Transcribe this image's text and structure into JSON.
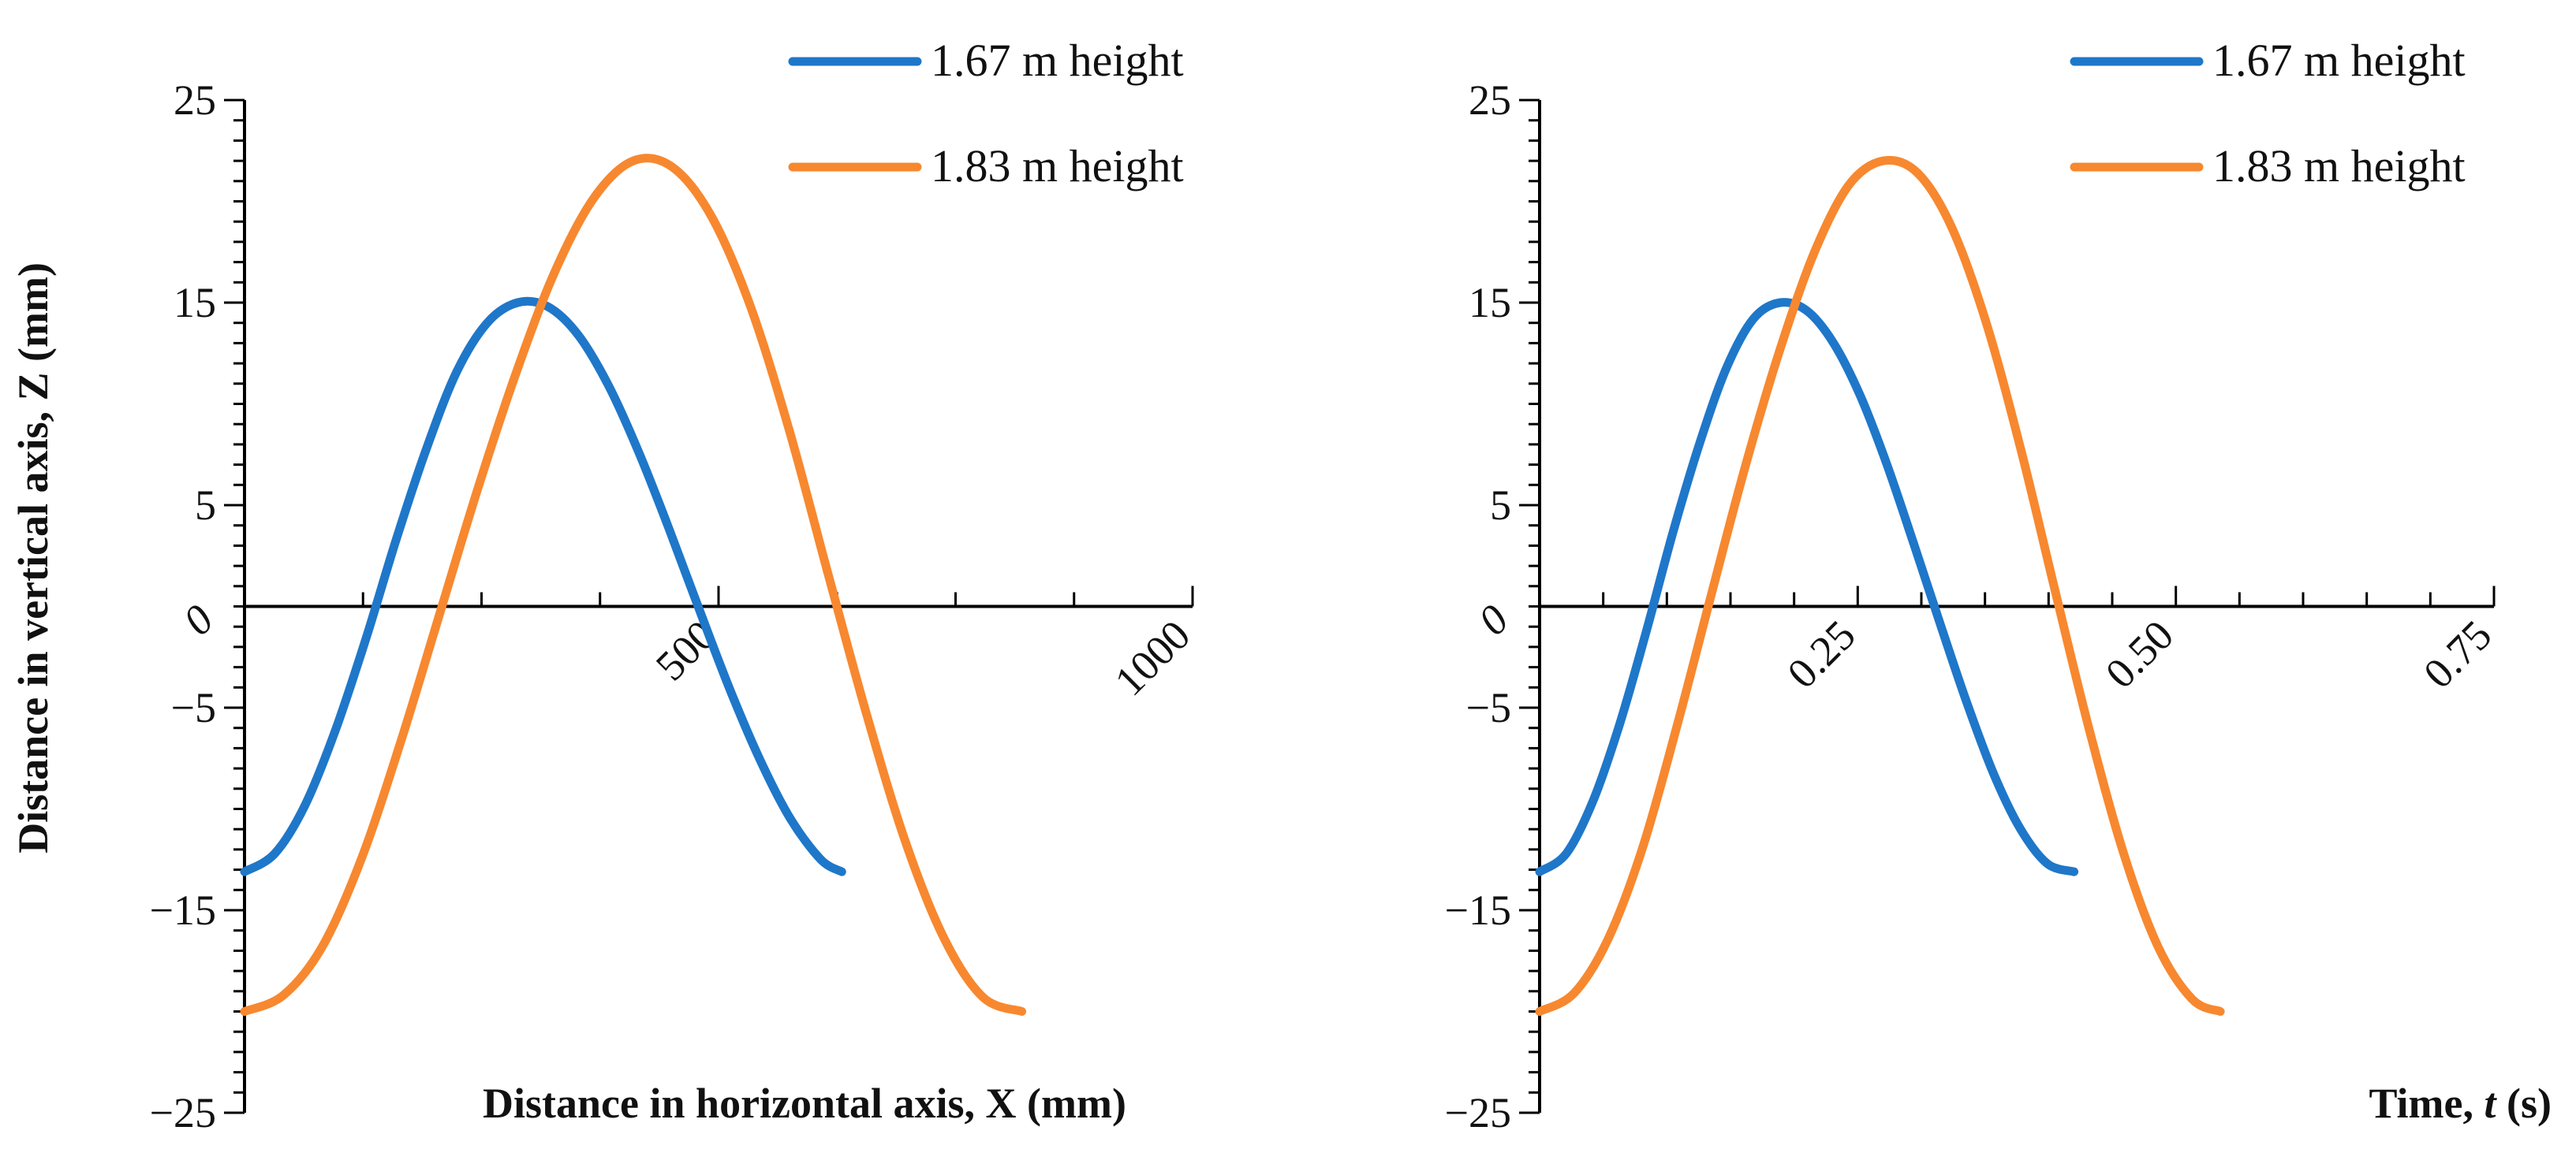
{
  "chart_data": [
    {
      "type": "line",
      "title": "",
      "xlabel": "Distance in horizontal axis, X (mm)",
      "ylabel": "Distance in vertical axis, Z (mm)",
      "xlim": [
        0,
        1000
      ],
      "ylim": [
        -25,
        25
      ],
      "y_major_ticks": [
        25,
        15,
        5,
        -5,
        -15,
        -25
      ],
      "y_minor_step": 1,
      "x_ticks": [
        500,
        1000
      ],
      "x_minor_step": 125,
      "zero_label": "0",
      "legend": [
        "1.67 m height",
        "1.83 m height"
      ],
      "series": [
        {
          "name": "1.67 m height",
          "color": "#1f77c9",
          "x": [
            0,
            32,
            64,
            96,
            128,
            160,
            192,
            224,
            256,
            288,
            320,
            352,
            384,
            416,
            448,
            480,
            512,
            544,
            576,
            608,
            630
          ],
          "y": [
            -13.1,
            -12.2,
            -9.8,
            -6.1,
            -1.6,
            3.3,
            7.8,
            11.6,
            14.0,
            15.0,
            14.8,
            13.4,
            10.9,
            7.6,
            3.8,
            -0.2,
            -4.1,
            -7.6,
            -10.5,
            -12.5,
            -13.1
          ]
        },
        {
          "name": "1.83 m height",
          "color": "#f7882f",
          "x": [
            0,
            41,
            82,
            123,
            164,
            205,
            246,
            287,
            328,
            369,
            410,
            451,
            492,
            533,
            574,
            615,
            656,
            697,
            738,
            779,
            820
          ],
          "y": [
            -20.0,
            -19.2,
            -16.8,
            -12.5,
            -6.8,
            -0.5,
            5.8,
            11.6,
            16.6,
            20.2,
            22.0,
            21.7,
            19.3,
            14.9,
            8.8,
            1.7,
            -5.3,
            -11.6,
            -16.4,
            -19.3,
            -20.0
          ]
        }
      ]
    },
    {
      "type": "line",
      "title": "",
      "xlabel_prefix": "Time, ",
      "xlabel_var": "t",
      "xlabel_suffix": " (s)",
      "ylabel": "",
      "xlim": [
        0,
        0.75
      ],
      "ylim": [
        -25,
        25
      ],
      "y_major_ticks": [
        25,
        15,
        5,
        -5,
        -15,
        -25
      ],
      "y_minor_step": 1,
      "x_ticks": [
        0.25,
        0.5,
        0.75
      ],
      "x_tick_labels": [
        "0.25",
        "0.50",
        "0.75"
      ],
      "x_minor_step": 0.05,
      "zero_label": "0",
      "legend": [
        "1.67 m height",
        "1.83 m height"
      ],
      "series": [
        {
          "name": "1.67 m height",
          "color": "#1f77c9",
          "x": [
            0,
            0.021,
            0.042,
            0.063,
            0.084,
            0.105,
            0.126,
            0.147,
            0.168,
            0.189,
            0.21,
            0.231,
            0.252,
            0.273,
            0.294,
            0.315,
            0.336,
            0.357,
            0.378,
            0.399,
            0.42
          ],
          "y": [
            -13.1,
            -12.2,
            -9.6,
            -5.8,
            -1.2,
            3.7,
            8.1,
            11.8,
            14.2,
            15.0,
            14.6,
            13.0,
            10.4,
            7.0,
            3.1,
            -0.9,
            -4.8,
            -8.3,
            -11.0,
            -12.7,
            -13.1
          ]
        },
        {
          "name": "1.83 m height",
          "color": "#f7882f",
          "x": [
            0,
            0.027,
            0.054,
            0.081,
            0.108,
            0.135,
            0.162,
            0.189,
            0.216,
            0.243,
            0.27,
            0.297,
            0.324,
            0.351,
            0.378,
            0.405,
            0.432,
            0.459,
            0.486,
            0.513,
            0.535
          ],
          "y": [
            -20.0,
            -19.1,
            -16.4,
            -11.9,
            -5.9,
            0.6,
            7.0,
            12.7,
            17.5,
            20.8,
            22.0,
            21.4,
            18.7,
            14.0,
            7.8,
            0.8,
            -6.1,
            -12.2,
            -16.8,
            -19.4,
            -20.0
          ]
        }
      ]
    }
  ]
}
